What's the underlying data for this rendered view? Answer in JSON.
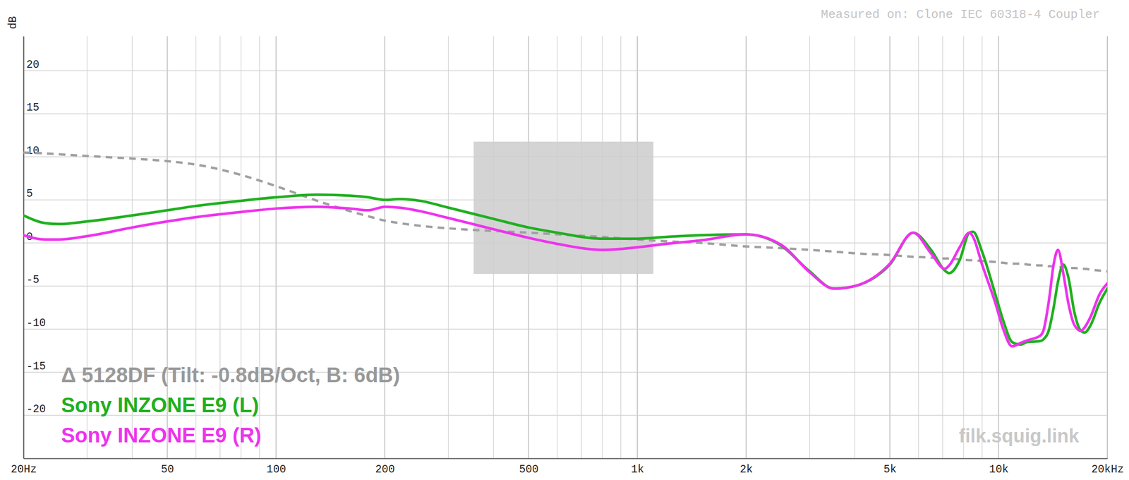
{
  "chart_data": {
    "type": "line",
    "y_label": "dB",
    "annotations": [
      "Measured on: Clone IEC 60318-4 Coupler",
      "filk.squig.link"
    ],
    "log": "x",
    "grid": true,
    "legend": "lower left",
    "xlim": [
      20,
      20000
    ],
    "ylim": [
      -25,
      24
    ],
    "xticks": [
      {
        "value": 20,
        "label": "20Hz"
      },
      50,
      100,
      200,
      500,
      {
        "value": 1000,
        "label": "1k"
      },
      {
        "value": 2000,
        "label": "2k"
      },
      {
        "value": 5000,
        "label": "5k"
      },
      {
        "value": 10000,
        "label": "10k"
      },
      {
        "value": 20000,
        "label": "20kHz"
      }
    ],
    "yticks": [
      20,
      15,
      10,
      5,
      0,
      -5,
      -10,
      -15,
      -20
    ],
    "x": [
      20,
      23,
      25,
      30,
      40,
      50,
      60,
      80,
      100,
      130,
      160,
      180,
      200,
      220,
      250,
      300,
      400,
      500,
      600,
      800,
      1000,
      1200,
      1500,
      2000,
      2500,
      3000,
      3500,
      4000,
      5000,
      5800,
      6500,
      7100,
      7300,
      7800,
      8300,
      8500,
      9000,
      9800,
      10300,
      10900,
      11500,
      12000,
      13000,
      13300,
      13800,
      14200,
      14600,
      15100,
      15600,
      16200,
      16900,
      17300,
      18000,
      19000,
      20000
    ],
    "series": [
      {
        "name": "Δ 5128DF (Tilt: -0.8dB/Oct, B: 6dB)",
        "color": "#a0a0a0",
        "line_style": "dashed",
        "values": [
          10.5,
          10.4,
          10.3,
          10.1,
          9.8,
          9.5,
          9.1,
          7.9,
          6.6,
          4.9,
          3.7,
          3.1,
          2.6,
          2.3,
          2.0,
          1.7,
          1.4,
          1.2,
          1.0,
          0.7,
          0.4,
          0.2,
          0,
          -0.4,
          -0.6,
          -0.8,
          -1.0,
          -1.2,
          -1.4,
          -1.6,
          -1.7,
          -1.8,
          -1.8,
          -1.9,
          -2.0,
          -2.0,
          -2.1,
          -2.2,
          -2.3,
          -2.4,
          -2.4,
          -2.5,
          -2.6,
          -2.6,
          -2.7,
          -2.7,
          -2.8,
          -2.8,
          -2.9,
          -2.9,
          -3.0,
          -3.0,
          -3.1,
          -3.2,
          -3.3
        ]
      },
      {
        "name": "Sony INZONE E9 (L)",
        "color": "#1fb01f",
        "line_style": "solid",
        "values": [
          3.2,
          2.3,
          2.2,
          2.5,
          3.2,
          3.8,
          4.3,
          4.9,
          5.3,
          5.6,
          5.5,
          5.3,
          5.0,
          5.1,
          4.9,
          4.1,
          2.8,
          1.8,
          1.2,
          0.5,
          0.5,
          0.7,
          0.9,
          1.0,
          -0.3,
          -3.3,
          -5.3,
          -5.0,
          -2.5,
          1.2,
          -0.8,
          -3.2,
          -3.5,
          -2.0,
          1.2,
          1.3,
          -1.0,
          -6.0,
          -9.0,
          -11.5,
          -11.8,
          -11.5,
          -11.4,
          -11.2,
          -10.0,
          -7.5,
          -4.5,
          -2.5,
          -4.0,
          -8.0,
          -10.2,
          -10.4,
          -9.5,
          -7.0,
          -5.3
        ]
      },
      {
        "name": "Sony INZONE E9 (R)",
        "color": "#ee33ee",
        "line_style": "solid",
        "values": [
          0.9,
          0.4,
          0.4,
          0.8,
          1.8,
          2.5,
          3.0,
          3.6,
          4.0,
          4.2,
          4.0,
          3.8,
          4.2,
          4.1,
          3.7,
          2.9,
          1.6,
          0.6,
          -0.1,
          -0.8,
          -0.5,
          -0.1,
          0.3,
          1.0,
          -0.2,
          -3.4,
          -5.3,
          -5.0,
          -2.4,
          1.2,
          -1.2,
          -3.0,
          -2.6,
          -0.5,
          1.2,
          0.7,
          -2.5,
          -7.0,
          -10.0,
          -12.0,
          -11.6,
          -11.3,
          -10.8,
          -10.2,
          -6.5,
          -2.5,
          -0.8,
          -3.5,
          -7.0,
          -9.5,
          -10.2,
          -9.8,
          -8.5,
          -6.0,
          -4.7
        ]
      }
    ]
  }
}
